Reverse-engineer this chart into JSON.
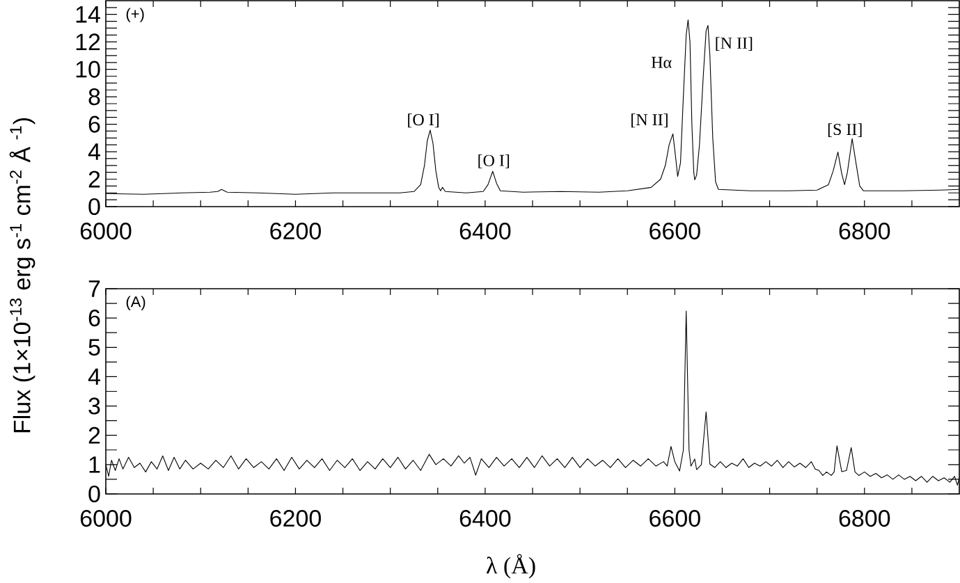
{
  "chart_data": [
    {
      "type": "line",
      "ylabel": "Flux (1×10$^{-13}$ erg s$^{-1}$ cm$^{-2}$ Å $^{-1}$)",
      "xlim": [
        6000,
        6900
      ],
      "ylim": [
        0,
        15
      ],
      "xticks": [
        6000,
        {
          "value": 6050,
          "label": null
        },
        {
          "value": 6100,
          "label": null
        },
        {
          "value": 6150,
          "label": null
        },
        6200,
        {
          "value": 6250,
          "label": null
        },
        {
          "value": 6300,
          "label": null
        },
        {
          "value": 6350,
          "label": null
        },
        6400,
        {
          "value": 6450,
          "label": null
        },
        {
          "value": 6500,
          "label": null
        },
        {
          "value": 6550,
          "label": null
        },
        6600,
        {
          "value": 6650,
          "label": null
        },
        {
          "value": 6700,
          "label": null
        },
        {
          "value": 6750,
          "label": null
        },
        6800,
        {
          "value": 6850,
          "label": null
        }
      ],
      "yticks": [
        0,
        {
          "value": 0.5,
          "label": null
        },
        {
          "value": 1,
          "label": null
        },
        {
          "value": 1.5,
          "label": null
        },
        2,
        {
          "value": 2.5,
          "label": null
        },
        {
          "value": 3,
          "label": null
        },
        {
          "value": 3.5,
          "label": null
        },
        4,
        {
          "value": 4.5,
          "label": null
        },
        {
          "value": 5,
          "label": null
        },
        {
          "value": 5.5,
          "label": null
        },
        6,
        {
          "value": 6.5,
          "label": null
        },
        {
          "value": 7,
          "label": null
        },
        {
          "value": 7.5,
          "label": null
        },
        8,
        {
          "value": 8.5,
          "label": null
        },
        {
          "value": 9,
          "label": null
        },
        {
          "value": 9.5,
          "label": null
        },
        10,
        {
          "value": 10.5,
          "label": null
        },
        {
          "value": 11,
          "label": null
        },
        {
          "value": 11.5,
          "label": null
        },
        12,
        {
          "value": 12.5,
          "label": null
        },
        {
          "value": 13,
          "label": null
        },
        {
          "value": 13.5,
          "label": null
        },
        14,
        {
          "value": 14.5,
          "label": null
        }
      ],
      "annotations": [
        "(+)",
        "[O I]",
        "[O I]",
        "[N II]",
        "Hα",
        "[N II]",
        "[S II]"
      ],
      "series": [
        {
          "color": "#000000",
          "x": [
            6000,
            6040,
            6080,
            6110,
            6118,
            6122,
            6128,
            6160,
            6200,
            6240,
            6280,
            6310,
            6325,
            6332,
            6336,
            6339,
            6342,
            6345,
            6348,
            6351,
            6353,
            6355,
            6358,
            6380,
            6398,
            6403,
            6408,
            6412,
            6416,
            6440,
            6480,
            6520,
            6550,
            6575,
            6585,
            6590,
            6594,
            6598,
            6601,
            6603,
            6606,
            6609,
            6612,
            6614,
            6616,
            6618,
            6620,
            6621,
            6623,
            6626,
            6630,
            6633,
            6635,
            6637,
            6640,
            6643,
            6646,
            6680,
            6720,
            6750,
            6762,
            6767,
            6772,
            6776,
            6779,
            6782,
            6787,
            6791,
            6795,
            6799,
            6840,
            6880,
            6900
          ],
          "values": [
            0.95,
            0.9,
            1.0,
            1.05,
            1.1,
            1.25,
            1.05,
            1.0,
            0.9,
            1.0,
            1.0,
            1.0,
            1.1,
            1.6,
            3.0,
            4.8,
            5.57,
            4.6,
            2.6,
            1.4,
            1.15,
            1.4,
            1.1,
            1.0,
            1.1,
            1.6,
            2.57,
            1.7,
            1.15,
            1.05,
            1.1,
            1.05,
            1.15,
            1.4,
            2.0,
            3.0,
            4.5,
            5.3,
            3.5,
            2.2,
            3.2,
            8.0,
            12.5,
            13.6,
            12.0,
            6.0,
            2.5,
            1.95,
            2.3,
            4.5,
            9.5,
            12.8,
            13.2,
            11.0,
            5.0,
            1.8,
            1.25,
            1.15,
            1.15,
            1.2,
            1.6,
            2.6,
            3.97,
            2.4,
            1.6,
            2.5,
            4.95,
            3.2,
            1.5,
            1.15,
            1.15,
            1.2,
            1.25
          ]
        }
      ]
    },
    {
      "type": "line",
      "xlabel": "λ (Å)",
      "xlim": [
        6000,
        6900
      ],
      "ylim": [
        0,
        7
      ],
      "xticks": [
        6000,
        {
          "value": 6050,
          "label": null
        },
        {
          "value": 6100,
          "label": null
        },
        {
          "value": 6150,
          "label": null
        },
        6200,
        {
          "value": 6250,
          "label": null
        },
        {
          "value": 6300,
          "label": null
        },
        {
          "value": 6350,
          "label": null
        },
        6400,
        {
          "value": 6450,
          "label": null
        },
        {
          "value": 6500,
          "label": null
        },
        {
          "value": 6550,
          "label": null
        },
        6600,
        {
          "value": 6650,
          "label": null
        },
        {
          "value": 6700,
          "label": null
        },
        {
          "value": 6750,
          "label": null
        },
        6800,
        {
          "value": 6850,
          "label": null
        }
      ],
      "yticks": [
        0,
        {
          "value": 0.5,
          "label": null
        },
        1,
        {
          "value": 1.5,
          "label": null
        },
        2,
        {
          "value": 2.5,
          "label": null
        },
        3,
        {
          "value": 3.5,
          "label": null
        },
        4,
        {
          "value": 4.5,
          "label": null
        },
        5,
        {
          "value": 5.5,
          "label": null
        },
        6,
        {
          "value": 6.5,
          "label": null
        },
        7
      ],
      "annotations": [
        "(A)"
      ],
      "series": [
        {
          "color": "#000000",
          "x": [
            6000,
            6003,
            6006,
            6010,
            6014,
            6018,
            6024,
            6030,
            6036,
            6042,
            6048,
            6054,
            6060,
            6066,
            6072,
            6078,
            6084,
            6092,
            6100,
            6108,
            6116,
            6124,
            6132,
            6140,
            6148,
            6156,
            6164,
            6172,
            6180,
            6188,
            6196,
            6204,
            6212,
            6220,
            6228,
            6236,
            6244,
            6252,
            6260,
            6268,
            6276,
            6284,
            6292,
            6300,
            6308,
            6316,
            6324,
            6332,
            6341,
            6348,
            6356,
            6364,
            6372,
            6378,
            6384,
            6390,
            6396,
            6404,
            6412,
            6420,
            6428,
            6436,
            6444,
            6452,
            6460,
            6468,
            6476,
            6484,
            6492,
            6500,
            6508,
            6516,
            6524,
            6532,
            6540,
            6548,
            6556,
            6564,
            6572,
            6580,
            6588,
            6592,
            6596,
            6600,
            6605,
            6609,
            6612,
            6615,
            6617,
            6621,
            6623,
            6628,
            6633,
            6637,
            6642,
            6648,
            6654,
            6660,
            6666,
            6672,
            6678,
            6684,
            6690,
            6696,
            6702,
            6708,
            6714,
            6720,
            6726,
            6732,
            6738,
            6744,
            6748,
            6752,
            6756,
            6760,
            6765,
            6768,
            6771,
            6776,
            6781,
            6786,
            6790,
            6794,
            6800,
            6806,
            6812,
            6818,
            6824,
            6830,
            6836,
            6842,
            6848,
            6854,
            6860,
            6866,
            6872,
            6878,
            6884,
            6890,
            6895,
            6898,
            6900
          ],
          "values": [
            1.0,
            0.6,
            1.15,
            0.8,
            1.2,
            0.85,
            1.25,
            0.9,
            1.05,
            0.75,
            1.1,
            0.85,
            1.3,
            0.8,
            1.25,
            0.85,
            1.15,
            0.85,
            1.05,
            0.85,
            1.15,
            0.9,
            1.3,
            0.85,
            1.2,
            0.9,
            1.1,
            0.85,
            1.2,
            0.8,
            1.25,
            0.85,
            1.15,
            0.9,
            1.2,
            0.8,
            1.15,
            0.9,
            1.2,
            0.8,
            1.1,
            0.85,
            1.2,
            0.9,
            1.25,
            0.85,
            1.15,
            0.8,
            1.35,
            1.0,
            1.2,
            0.95,
            1.3,
            1.05,
            1.25,
            0.64,
            1.2,
            0.9,
            1.25,
            0.95,
            1.2,
            0.9,
            1.25,
            0.9,
            1.3,
            0.95,
            1.2,
            0.9,
            1.25,
            0.9,
            1.2,
            0.95,
            1.15,
            0.9,
            1.2,
            0.9,
            1.15,
            0.95,
            1.2,
            0.95,
            1.1,
            0.95,
            1.62,
            1.1,
            0.78,
            1.5,
            6.24,
            1.5,
            0.95,
            1.19,
            0.83,
            1.0,
            2.8,
            1.02,
            0.9,
            1.1,
            0.9,
            1.05,
            0.95,
            1.2,
            0.9,
            1.05,
            0.95,
            1.1,
            0.95,
            1.15,
            0.9,
            1.1,
            0.92,
            1.05,
            0.9,
            1.1,
            0.85,
            0.8,
            0.63,
            0.75,
            0.63,
            0.75,
            1.64,
            0.76,
            0.8,
            1.58,
            0.75,
            0.63,
            0.75,
            0.6,
            0.7,
            0.55,
            0.65,
            0.5,
            0.65,
            0.5,
            0.6,
            0.45,
            0.6,
            0.4,
            0.6,
            0.45,
            0.55,
            0.4,
            0.6,
            0.3,
            0.55
          ]
        }
      ]
    }
  ]
}
